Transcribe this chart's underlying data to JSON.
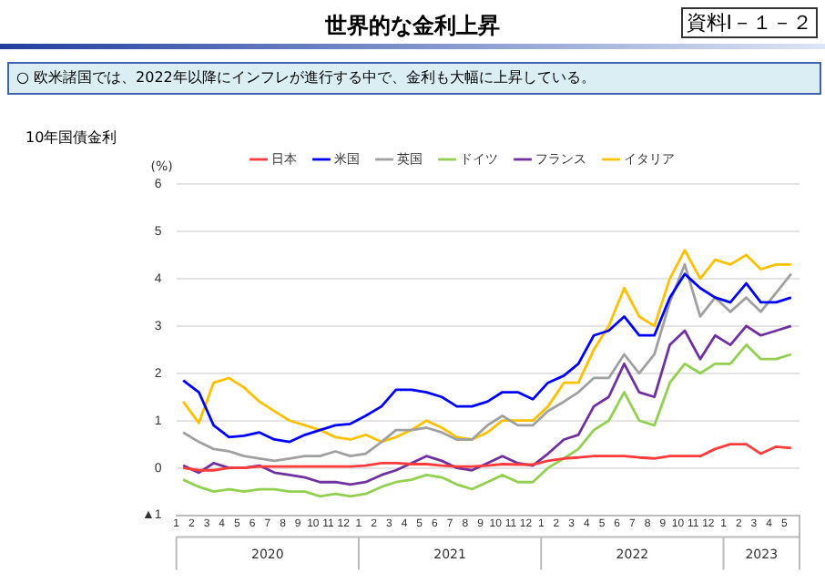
{
  "chart_data": {
    "type": "line",
    "title": "世界的な金利上昇",
    "subtitle": "○ 欧米諸国では、2022年以降にインフレが進行する中で、金利も大幅に上昇している。",
    "ylabel": "(%)",
    "annotations": [
      "資料Ⅰ－１－２",
      "10年国債金利",
      "2020",
      "2021",
      "2022",
      "2023"
    ],
    "x": [
      "2020-01-15",
      "2020-02-15",
      "2020-03-15",
      "2020-04-15",
      "2020-05-15",
      "2020-06-15",
      "2020-07-15",
      "2020-08-15",
      "2020-09-15",
      "2020-10-15",
      "2020-11-15",
      "2020-12-15",
      "2021-01-15",
      "2021-02-15",
      "2021-03-15",
      "2021-04-15",
      "2021-05-15",
      "2021-06-15",
      "2021-07-15",
      "2021-08-15",
      "2021-09-15",
      "2021-10-15",
      "2021-11-15",
      "2021-12-15",
      "2022-01-15",
      "2022-02-15",
      "2022-03-15",
      "2022-04-15",
      "2022-05-15",
      "2022-06-15",
      "2022-07-15",
      "2022-08-15",
      "2022-09-15",
      "2022-10-15",
      "2022-11-15",
      "2022-12-15",
      "2023-01-15",
      "2023-02-15",
      "2023-03-15",
      "2023-04-15",
      "2023-05-15"
    ],
    "series": [
      {
        "name": "日本",
        "color": "#ff3b3b",
        "values": [
          0.0,
          -0.05,
          -0.05,
          0.0,
          0.0,
          0.03,
          0.03,
          0.03,
          0.03,
          0.03,
          0.03,
          0.03,
          0.05,
          0.1,
          0.1,
          0.08,
          0.08,
          0.05,
          0.03,
          0.03,
          0.05,
          0.08,
          0.07,
          0.07,
          0.15,
          0.2,
          0.22,
          0.25,
          0.25,
          0.25,
          0.22,
          0.2,
          0.25,
          0.25,
          0.25,
          0.4,
          0.5,
          0.5,
          0.3,
          0.45,
          0.42
        ]
      },
      {
        "name": "米国",
        "color": "#0000ff",
        "values": [
          1.85,
          1.6,
          0.9,
          0.65,
          0.68,
          0.75,
          0.6,
          0.55,
          0.7,
          0.8,
          0.9,
          0.93,
          1.1,
          1.3,
          1.65,
          1.65,
          1.6,
          1.5,
          1.3,
          1.3,
          1.4,
          1.6,
          1.6,
          1.45,
          1.8,
          1.95,
          2.2,
          2.8,
          2.9,
          3.2,
          2.8,
          2.8,
          3.6,
          4.1,
          3.8,
          3.6,
          3.5,
          3.9,
          3.5,
          3.5,
          3.6
        ]
      },
      {
        "name": "英国",
        "color": "#a0a0a0",
        "values": [
          0.75,
          0.55,
          0.4,
          0.35,
          0.25,
          0.2,
          0.15,
          0.2,
          0.25,
          0.25,
          0.35,
          0.25,
          0.3,
          0.55,
          0.8,
          0.8,
          0.85,
          0.75,
          0.6,
          0.6,
          0.9,
          1.1,
          0.9,
          0.9,
          1.2,
          1.4,
          1.6,
          1.9,
          1.9,
          2.4,
          2.0,
          2.4,
          3.5,
          4.3,
          3.2,
          3.6,
          3.3,
          3.6,
          3.3,
          3.7,
          4.1
        ]
      },
      {
        "name": "ドイツ",
        "color": "#92d050",
        "values": [
          -0.25,
          -0.4,
          -0.5,
          -0.45,
          -0.5,
          -0.45,
          -0.45,
          -0.5,
          -0.5,
          -0.6,
          -0.55,
          -0.6,
          -0.55,
          -0.4,
          -0.3,
          -0.25,
          -0.15,
          -0.2,
          -0.35,
          -0.45,
          -0.3,
          -0.15,
          -0.3,
          -0.3,
          0.0,
          0.2,
          0.4,
          0.8,
          1.0,
          1.6,
          1.0,
          0.9,
          1.8,
          2.2,
          2.0,
          2.2,
          2.2,
          2.6,
          2.3,
          2.3,
          2.4
        ]
      },
      {
        "name": "フランス",
        "color": "#7030a0",
        "values": [
          0.05,
          -0.1,
          0.1,
          0.0,
          0.0,
          0.05,
          -0.1,
          -0.15,
          -0.2,
          -0.3,
          -0.3,
          -0.35,
          -0.3,
          -0.15,
          -0.05,
          0.1,
          0.25,
          0.15,
          0.0,
          -0.05,
          0.1,
          0.25,
          0.1,
          0.05,
          0.3,
          0.6,
          0.7,
          1.3,
          1.5,
          2.2,
          1.6,
          1.5,
          2.6,
          2.9,
          2.3,
          2.8,
          2.6,
          3.0,
          2.8,
          2.9,
          3.0
        ]
      },
      {
        "name": "イタリア",
        "color": "#ffc000",
        "values": [
          1.4,
          0.95,
          1.8,
          1.9,
          1.7,
          1.4,
          1.2,
          1.0,
          0.9,
          0.8,
          0.65,
          0.6,
          0.7,
          0.55,
          0.65,
          0.8,
          1.0,
          0.85,
          0.65,
          0.6,
          0.75,
          1.0,
          1.0,
          1.0,
          1.3,
          1.8,
          1.8,
          2.5,
          3.0,
          3.8,
          3.2,
          3.0,
          4.0,
          4.6,
          4.0,
          4.4,
          4.3,
          4.5,
          4.2,
          4.3,
          4.3
        ]
      }
    ],
    "xlim": [
      "2020-01-01",
      "2023-06-01"
    ],
    "xticks": [
      {
        "value": "2020-01",
        "label": "1"
      },
      {
        "value": "2020-02",
        "label": "2"
      },
      {
        "value": "2020-03",
        "label": "3"
      },
      {
        "value": "2020-04",
        "label": "4"
      },
      {
        "value": "2020-05",
        "label": "5"
      },
      {
        "value": "2020-06",
        "label": "6"
      },
      {
        "value": "2020-07",
        "label": "7"
      },
      {
        "value": "2020-08",
        "label": "8"
      },
      {
        "value": "2020-09",
        "label": "9"
      },
      {
        "value": "2020-10",
        "label": "10"
      },
      {
        "value": "2020-11",
        "label": "11"
      },
      {
        "value": "2020-12",
        "label": "12"
      },
      {
        "value": "2021-01",
        "label": "1"
      },
      {
        "value": "2021-02",
        "label": "2"
      },
      {
        "value": "2021-03",
        "label": "3"
      },
      {
        "value": "2021-04",
        "label": "4"
      },
      {
        "value": "2021-05",
        "label": "5"
      },
      {
        "value": "2021-06",
        "label": "6"
      },
      {
        "value": "2021-07",
        "label": "7"
      },
      {
        "value": "2021-08",
        "label": "8"
      },
      {
        "value": "2021-09",
        "label": "9"
      },
      {
        "value": "2021-10",
        "label": "10"
      },
      {
        "value": "2021-11",
        "label": "11"
      },
      {
        "value": "2021-12",
        "label": "12"
      },
      {
        "value": "2022-01",
        "label": "1"
      },
      {
        "value": "2022-02",
        "label": "2"
      },
      {
        "value": "2022-03",
        "label": "3"
      },
      {
        "value": "2022-04",
        "label": "4"
      },
      {
        "value": "2022-05",
        "label": "5"
      },
      {
        "value": "2022-06",
        "label": "6"
      },
      {
        "value": "2022-07",
        "label": "7"
      },
      {
        "value": "2022-08",
        "label": "8"
      },
      {
        "value": "2022-09",
        "label": "9"
      },
      {
        "value": "2022-10",
        "label": "10"
      },
      {
        "value": "2022-11",
        "label": "11"
      },
      {
        "value": "2022-12",
        "label": "12"
      },
      {
        "value": "2023-01",
        "label": "1"
      },
      {
        "value": "2023-02",
        "label": "2"
      },
      {
        "value": "2023-03",
        "label": "3"
      },
      {
        "value": "2023-04",
        "label": "4"
      },
      {
        "value": "2023-05",
        "label": "5"
      }
    ],
    "ylim": [
      -1,
      6
    ],
    "yticks": [
      {
        "value": -1,
        "label": "▲1"
      },
      0,
      1,
      2,
      3,
      4,
      5,
      6
    ],
    "grid": "y",
    "legend": "top",
    "marker": "none",
    "line_style": "solid"
  }
}
